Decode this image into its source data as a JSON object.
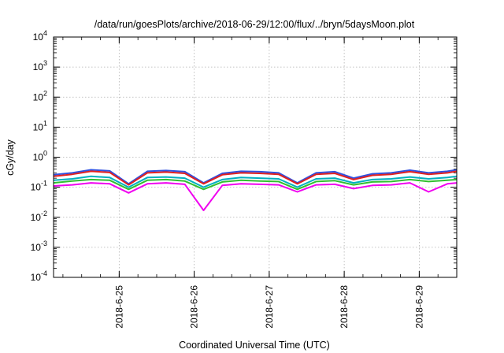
{
  "chart_data": {
    "type": "line",
    "title": "/data/run/goesPlots/archive/2018-06-29/12:00/flux/../bryn/5daysMoon.plot",
    "xlabel": "Coordinated Universal Time (UTC)",
    "ylabel": "cGy/day",
    "y_scale": "log",
    "ylim": [
      0.0001,
      10000
    ],
    "xlim": [
      "2018-06-24T03:00",
      "2018-06-29T12:00"
    ],
    "grid": true,
    "x_ticks": [
      "2018-6-25",
      "2018-6-26",
      "2018-6-27",
      "2018-6-28",
      "2018-6-29"
    ],
    "y_ticks": [
      {
        "base": "10",
        "exp": "-4",
        "value": 0.0001
      },
      {
        "base": "10",
        "exp": "-3",
        "value": 0.001
      },
      {
        "base": "10",
        "exp": "-2",
        "value": 0.01
      },
      {
        "base": "10",
        "exp": "-1",
        "value": 0.1
      },
      {
        "base": "10",
        "exp": "0",
        "value": 1
      },
      {
        "base": "10",
        "exp": "1",
        "value": 10
      },
      {
        "base": "10",
        "exp": "2",
        "value": 100
      },
      {
        "base": "10",
        "exp": "3",
        "value": 1000
      },
      {
        "base": "10",
        "exp": "4",
        "value": 10000
      }
    ],
    "x": [
      "2018-06-24T03:00",
      "2018-06-24T09:00",
      "2018-06-24T15:00",
      "2018-06-24T21:00",
      "2018-06-25T03:00",
      "2018-06-25T09:00",
      "2018-06-25T15:00",
      "2018-06-25T21:00",
      "2018-06-26T03:00",
      "2018-06-26T09:00",
      "2018-06-26T15:00",
      "2018-06-26T21:00",
      "2018-06-27T03:00",
      "2018-06-27T09:00",
      "2018-06-27T15:00",
      "2018-06-27T21:00",
      "2018-06-28T03:00",
      "2018-06-28T09:00",
      "2018-06-28T15:00",
      "2018-06-28T21:00",
      "2018-06-29T03:00",
      "2018-06-29T09:00",
      "2018-06-29T12:00"
    ],
    "series": [
      {
        "color": "#3050e0",
        "values": [
          0.26,
          0.3,
          0.38,
          0.35,
          0.13,
          0.34,
          0.36,
          0.33,
          0.14,
          0.29,
          0.34,
          0.33,
          0.3,
          0.14,
          0.3,
          0.33,
          0.2,
          0.28,
          0.3,
          0.37,
          0.3,
          0.34,
          0.38
        ]
      },
      {
        "color": "#e02020",
        "values": [
          0.23,
          0.27,
          0.34,
          0.31,
          0.12,
          0.3,
          0.32,
          0.29,
          0.13,
          0.26,
          0.3,
          0.29,
          0.27,
          0.13,
          0.27,
          0.29,
          0.18,
          0.25,
          0.27,
          0.33,
          0.27,
          0.3,
          0.34
        ]
      },
      {
        "color": "#00b0c0",
        "values": [
          0.17,
          0.19,
          0.23,
          0.21,
          0.1,
          0.21,
          0.22,
          0.2,
          0.1,
          0.18,
          0.21,
          0.2,
          0.19,
          0.1,
          0.19,
          0.2,
          0.14,
          0.18,
          0.19,
          0.22,
          0.19,
          0.21,
          0.23
        ]
      },
      {
        "color": "#30c030",
        "values": [
          0.14,
          0.16,
          0.18,
          0.17,
          0.085,
          0.17,
          0.18,
          0.16,
          0.085,
          0.15,
          0.17,
          0.16,
          0.155,
          0.085,
          0.155,
          0.165,
          0.12,
          0.15,
          0.155,
          0.18,
          0.155,
          0.17,
          0.18
        ]
      },
      {
        "color": "#f000f0",
        "values": [
          0.11,
          0.12,
          0.14,
          0.13,
          0.065,
          0.13,
          0.14,
          0.125,
          0.017,
          0.115,
          0.13,
          0.125,
          0.12,
          0.07,
          0.12,
          0.125,
          0.09,
          0.115,
          0.12,
          0.14,
          0.07,
          0.13,
          0.14
        ]
      }
    ]
  }
}
